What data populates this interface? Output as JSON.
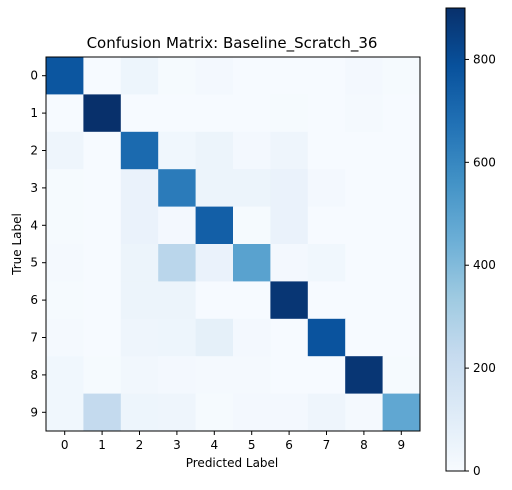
{
  "chart_data": {
    "type": "heatmap",
    "title": "Confusion Matrix: Baseline_Scratch_36",
    "xlabel": "Predicted Label",
    "ylabel": "True Label",
    "x_categories": [
      "0",
      "1",
      "2",
      "3",
      "4",
      "5",
      "6",
      "7",
      "8",
      "9"
    ],
    "y_categories": [
      "0",
      "1",
      "2",
      "3",
      "4",
      "5",
      "6",
      "7",
      "8",
      "9"
    ],
    "values": [
      [
        770,
        5,
        45,
        10,
        20,
        5,
        5,
        5,
        20,
        10
      ],
      [
        5,
        900,
        5,
        5,
        5,
        5,
        10,
        5,
        15,
        5
      ],
      [
        40,
        5,
        700,
        30,
        50,
        20,
        40,
        5,
        5,
        5
      ],
      [
        10,
        5,
        60,
        640,
        50,
        50,
        60,
        20,
        5,
        5
      ],
      [
        10,
        5,
        60,
        20,
        740,
        10,
        60,
        5,
        5,
        5
      ],
      [
        15,
        5,
        50,
        260,
        60,
        500,
        20,
        30,
        5,
        5
      ],
      [
        10,
        5,
        50,
        50,
        5,
        5,
        880,
        5,
        5,
        5
      ],
      [
        15,
        5,
        40,
        45,
        80,
        20,
        5,
        780,
        5,
        5
      ],
      [
        30,
        10,
        25,
        20,
        15,
        15,
        5,
        5,
        880,
        10
      ],
      [
        30,
        230,
        45,
        40,
        10,
        20,
        20,
        40,
        15,
        480
      ]
    ],
    "colormap": "Blues",
    "colormap_stops": [
      "#f7fbff",
      "#deebf7",
      "#c6dbef",
      "#9ecae1",
      "#6baed6",
      "#4292c6",
      "#2171b5",
      "#08519c",
      "#08306b"
    ],
    "vmin": 0,
    "vmax": 900,
    "colorbar_ticks": [
      0,
      200,
      400,
      600,
      800
    ],
    "colorbar_tick_labels": [
      "0",
      "200",
      "400",
      "600",
      "800"
    ],
    "grid": false
  }
}
